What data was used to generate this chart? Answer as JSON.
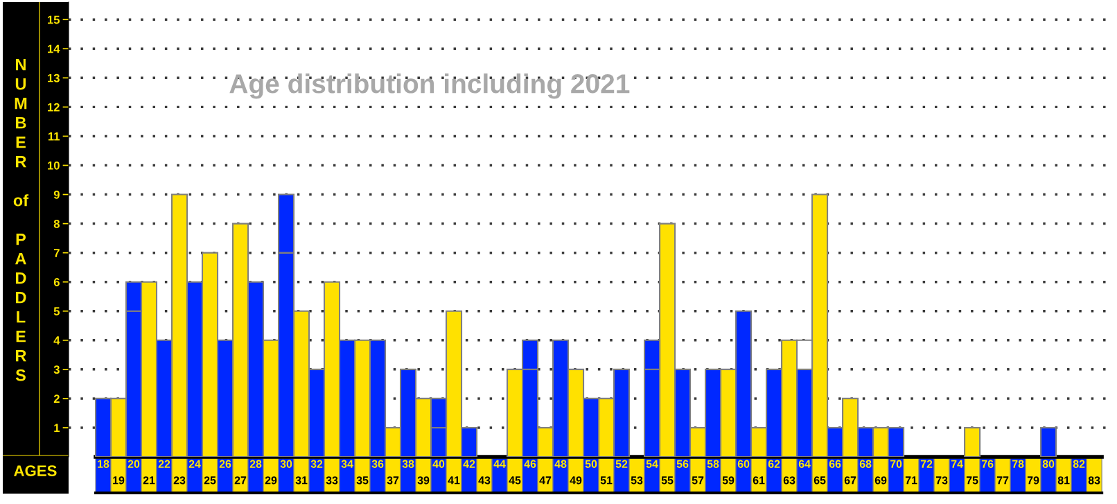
{
  "chart_data": {
    "type": "bar",
    "title": "Age distribution including 2021",
    "xlabel": "AGES",
    "ylabel": "NUMBER of PADDLERS",
    "categories": [
      "18",
      "19",
      "20",
      "21",
      "22",
      "23",
      "24",
      "25",
      "26",
      "27",
      "28",
      "29",
      "30",
      "31",
      "32",
      "33",
      "34",
      "35",
      "36",
      "37",
      "38",
      "39",
      "40",
      "41",
      "42",
      "43",
      "44",
      "45",
      "46",
      "47",
      "48",
      "49",
      "50",
      "51",
      "52",
      "53",
      "54",
      "55",
      "56",
      "57",
      "58",
      "59",
      "60",
      "61",
      "62",
      "63",
      "64",
      "65",
      "66",
      "67",
      "68",
      "69",
      "70",
      "71",
      "72",
      "73",
      "74",
      "75",
      "76",
      "77",
      "78",
      "79",
      "80",
      "81",
      "82",
      "83"
    ],
    "stacked": true,
    "series": [
      {
        "values": [
          2,
          2,
          5,
          6,
          4,
          9,
          6,
          7,
          4,
          8,
          6,
          4,
          7,
          5,
          3,
          6,
          4,
          4,
          4,
          1,
          3,
          2,
          1,
          5,
          1,
          0,
          0,
          3,
          3,
          1,
          4,
          3,
          2,
          2,
          3,
          0,
          3,
          8,
          3,
          1,
          3,
          3,
          5,
          1,
          3,
          4,
          3,
          9,
          1,
          2,
          1,
          1,
          1,
          0,
          0,
          0,
          0,
          1,
          0,
          0,
          0,
          0,
          1,
          0,
          0,
          0
        ],
        "colors": [
          "#0028ff",
          "#ffe100",
          "#0028ff",
          "#ffe100",
          "#0028ff",
          "#ffe100",
          "#0028ff",
          "#ffe100",
          "#0028ff",
          "#ffe100",
          "#0028ff",
          "#ffe100",
          "#0028ff",
          "#ffe100",
          "#0028ff",
          "#ffe100",
          "#0028ff",
          "#ffe100",
          "#0028ff",
          "#ffe100",
          "#0028ff",
          "#ffe100",
          "#0028ff",
          "#ffe100",
          "#0028ff",
          "#ffe100",
          "#0028ff",
          "#ffe100",
          "#0028ff",
          "#ffe100",
          "#0028ff",
          "#ffe100",
          "#0028ff",
          "#ffe100",
          "#0028ff",
          "#ffe100",
          "#0028ff",
          "#ffe100",
          "#0028ff",
          "#ffe100",
          "#0028ff",
          "#ffe100",
          "#0028ff",
          "#ffe100",
          "#0028ff",
          "#ffe100",
          "#0028ff",
          "#ffe100",
          "#0028ff",
          "#ffe100",
          "#0028ff",
          "#ffe100",
          "#0028ff",
          "#ffe100",
          "#0028ff",
          "#ffe100",
          "#0028ff",
          "#ffe100",
          "#0028ff",
          "#ffe100",
          "#0028ff",
          "#ffe100",
          "#0028ff",
          "#ffe100",
          "#0028ff",
          "#ffe100"
        ]
      },
      {
        "values": [
          null,
          null,
          1,
          null,
          null,
          null,
          null,
          null,
          null,
          null,
          null,
          null,
          2,
          null,
          null,
          null,
          null,
          null,
          null,
          null,
          null,
          null,
          1,
          null,
          null,
          null,
          null,
          null,
          1,
          null,
          null,
          null,
          null,
          null,
          null,
          null,
          1,
          null,
          null,
          null,
          null,
          null,
          null,
          null,
          null,
          null,
          1,
          null,
          null,
          null,
          null,
          null,
          null,
          null,
          null,
          null,
          null,
          null,
          null,
          null,
          null,
          null,
          null,
          null,
          null,
          null
        ],
        "colors": [
          null,
          null,
          "#0028ff",
          null,
          null,
          null,
          null,
          null,
          null,
          null,
          null,
          null,
          "#0028ff",
          null,
          null,
          null,
          null,
          null,
          null,
          null,
          null,
          null,
          "#0028ff",
          null,
          null,
          null,
          null,
          null,
          "#0028ff",
          null,
          null,
          null,
          null,
          null,
          null,
          null,
          "#0028ff",
          null,
          null,
          null,
          null,
          null,
          null,
          null,
          null,
          null,
          "#ffffff",
          null,
          null,
          null,
          null,
          null,
          null,
          null,
          null,
          null,
          null,
          null,
          null,
          null,
          null,
          null,
          null,
          null,
          null,
          null
        ]
      }
    ],
    "ylim": [
      0,
      15.6
    ],
    "yticks": [
      1,
      2,
      3,
      4,
      5,
      6,
      7,
      8,
      9,
      10,
      11,
      12,
      13,
      14,
      15
    ],
    "grid": "y"
  }
}
